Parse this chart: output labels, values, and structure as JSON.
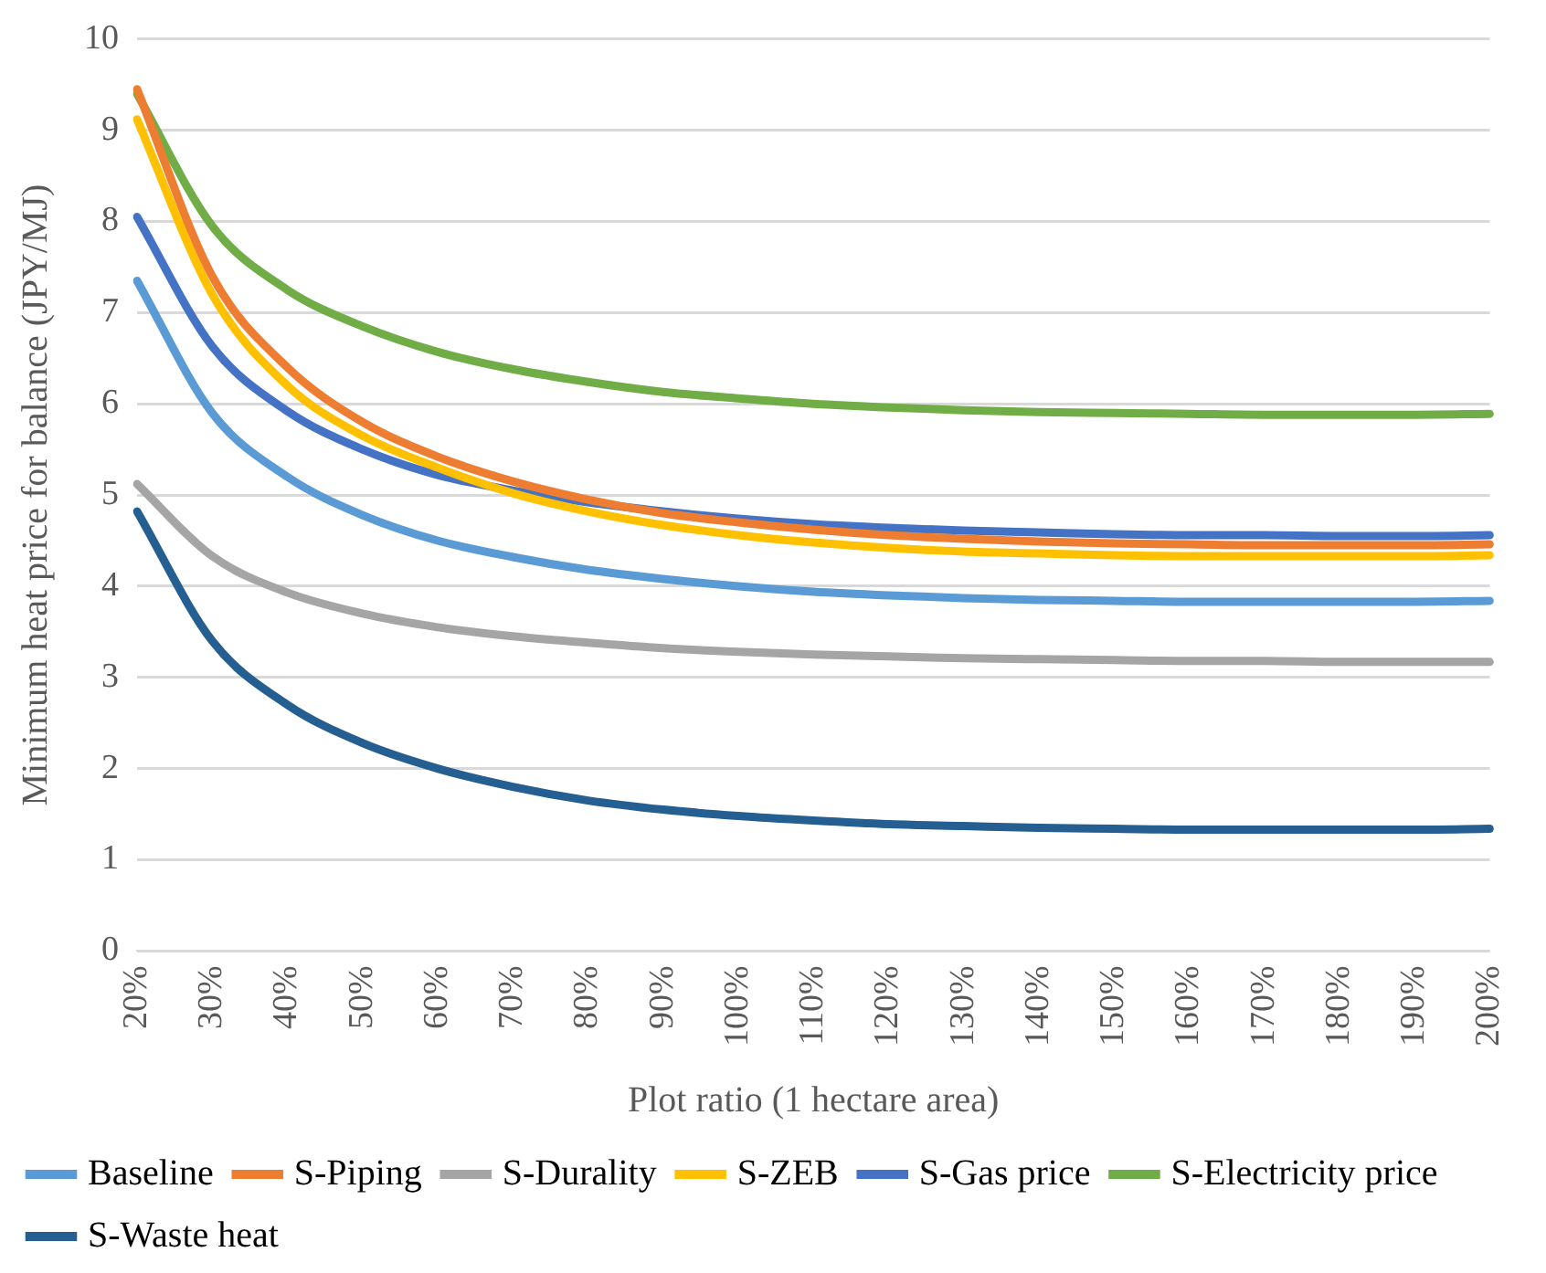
{
  "chart_data": {
    "type": "line",
    "xlabel": "Plot ratio (1 hectare area)",
    "ylabel": "Minimum heat price for balance (JPY/MJ)",
    "categories": [
      "20%",
      "30%",
      "40%",
      "50%",
      "60%",
      "70%",
      "80%",
      "90%",
      "100%",
      "110%",
      "120%",
      "130%",
      "140%",
      "150%",
      "160%",
      "170%",
      "180%",
      "190%",
      "200%"
    ],
    "ylim": [
      0,
      10
    ],
    "yticks": [
      0,
      1,
      2,
      3,
      4,
      5,
      6,
      7,
      8,
      9,
      10
    ],
    "grid": "y",
    "legend": "bottom",
    "marker": "none",
    "line_style": "solid",
    "series": [
      {
        "name": "Baseline",
        "color": "#5b9bd5",
        "values": [
          7.35,
          5.9,
          5.2,
          4.78,
          4.5,
          4.32,
          4.18,
          4.08,
          4.0,
          3.94,
          3.9,
          3.87,
          3.85,
          3.84,
          3.83,
          3.83,
          3.83,
          3.83,
          3.84
        ]
      },
      {
        "name": "S-Piping",
        "color": "#ed7d31",
        "values": [
          9.45,
          7.4,
          6.4,
          5.8,
          5.42,
          5.15,
          4.95,
          4.8,
          4.7,
          4.62,
          4.56,
          4.52,
          4.49,
          4.47,
          4.46,
          4.45,
          4.45,
          4.45,
          4.46
        ]
      },
      {
        "name": "S-Durality",
        "color": "#a5a5a5",
        "values": [
          5.12,
          4.33,
          3.93,
          3.7,
          3.55,
          3.45,
          3.38,
          3.32,
          3.28,
          3.25,
          3.23,
          3.21,
          3.2,
          3.19,
          3.18,
          3.18,
          3.17,
          3.17,
          3.17
        ]
      },
      {
        "name": "S-ZEB",
        "color": "#ffc000",
        "values": [
          9.12,
          7.2,
          6.2,
          5.65,
          5.3,
          5.02,
          4.82,
          4.67,
          4.56,
          4.48,
          4.42,
          4.38,
          4.36,
          4.34,
          4.33,
          4.33,
          4.33,
          4.33,
          4.34
        ]
      },
      {
        "name": "S-Gas price",
        "color": "#4472c4",
        "values": [
          8.05,
          6.63,
          5.92,
          5.5,
          5.22,
          5.05,
          4.92,
          4.82,
          4.74,
          4.68,
          4.64,
          4.61,
          4.59,
          4.57,
          4.56,
          4.56,
          4.55,
          4.55,
          4.56
        ]
      },
      {
        "name": "S-Electricity price",
        "color": "#70ad47",
        "values": [
          9.4,
          7.95,
          7.25,
          6.85,
          6.57,
          6.38,
          6.24,
          6.13,
          6.06,
          6.0,
          5.96,
          5.93,
          5.91,
          5.9,
          5.89,
          5.88,
          5.88,
          5.88,
          5.89
        ]
      },
      {
        "name": "S-Waste heat",
        "color": "#255e91",
        "values": [
          4.82,
          3.4,
          2.7,
          2.28,
          2.0,
          1.8,
          1.65,
          1.55,
          1.48,
          1.43,
          1.39,
          1.37,
          1.35,
          1.34,
          1.33,
          1.33,
          1.33,
          1.33,
          1.34
        ]
      }
    ]
  }
}
